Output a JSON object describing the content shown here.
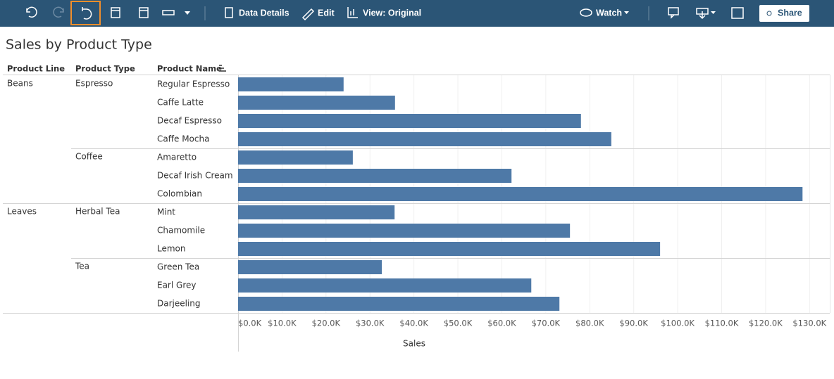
{
  "toolbar": {
    "data_details": "Data Details",
    "edit": "Edit",
    "view": "View: Original",
    "watch": "Watch",
    "share": "Share"
  },
  "chart_data": {
    "type": "bar",
    "orientation": "horizontal",
    "title": "Sales by Product Type",
    "column_headers": [
      "Product Line",
      "Product Type",
      "Product Name"
    ],
    "product_line": [
      "Beans",
      null,
      null,
      null,
      null,
      null,
      null,
      "Leaves",
      null,
      null,
      null,
      null,
      null
    ],
    "product_type": [
      "Espresso",
      null,
      null,
      null,
      "Coffee",
      null,
      null,
      "Herbal Tea",
      null,
      null,
      "Tea",
      null,
      null
    ],
    "categories": [
      "Regular Espresso",
      "Caffe Latte",
      "Decaf Espresso",
      "Caffe Mocha",
      "Amaretto",
      "Decaf Irish Cream",
      "Colombian",
      "Mint",
      "Chamomile",
      "Lemon",
      "Green Tea",
      "Earl Grey",
      "Darjeeling"
    ],
    "values": [
      24000,
      35700,
      78000,
      84900,
      26100,
      62200,
      128400,
      35600,
      75500,
      96000,
      32700,
      66700,
      73100
    ],
    "color": "#4e79a7",
    "xlabel": "Sales",
    "xlim": [
      0,
      134600
    ],
    "xticks": [
      {
        "value": 0,
        "label": "$0.0K"
      },
      {
        "value": 10000,
        "label": "$10.0K"
      },
      {
        "value": 20000,
        "label": "$20.0K"
      },
      {
        "value": 30000,
        "label": "$30.0K"
      },
      {
        "value": 40000,
        "label": "$40.0K"
      },
      {
        "value": 50000,
        "label": "$50.0K"
      },
      {
        "value": 60000,
        "label": "$60.0K"
      },
      {
        "value": 70000,
        "label": "$70.0K"
      },
      {
        "value": 80000,
        "label": "$80.0K"
      },
      {
        "value": 90000,
        "label": "$90.0K"
      },
      {
        "value": 100000,
        "label": "$100.0K"
      },
      {
        "value": 110000,
        "label": "$110.0K"
      },
      {
        "value": 120000,
        "label": "$120.0K"
      },
      {
        "value": 130000,
        "label": "$130.0K"
      }
    ],
    "grid": true
  }
}
